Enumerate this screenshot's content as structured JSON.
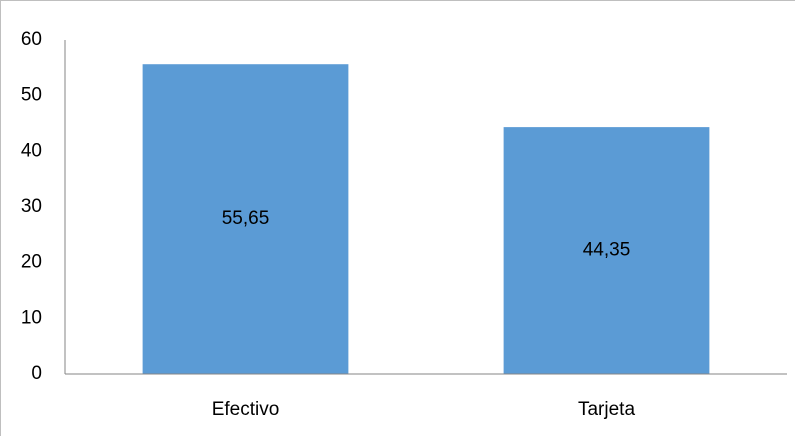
{
  "chart_data": {
    "type": "bar",
    "categories": [
      "Efectivo",
      "Tarjeta"
    ],
    "values": [
      55.65,
      44.35
    ],
    "value_labels": [
      "55,65",
      "44,35"
    ],
    "color": "#5b9bd5",
    "ylim": [
      0,
      60
    ],
    "yticks": [
      0,
      10,
      20,
      30,
      40,
      50,
      60
    ],
    "grid": false
  }
}
